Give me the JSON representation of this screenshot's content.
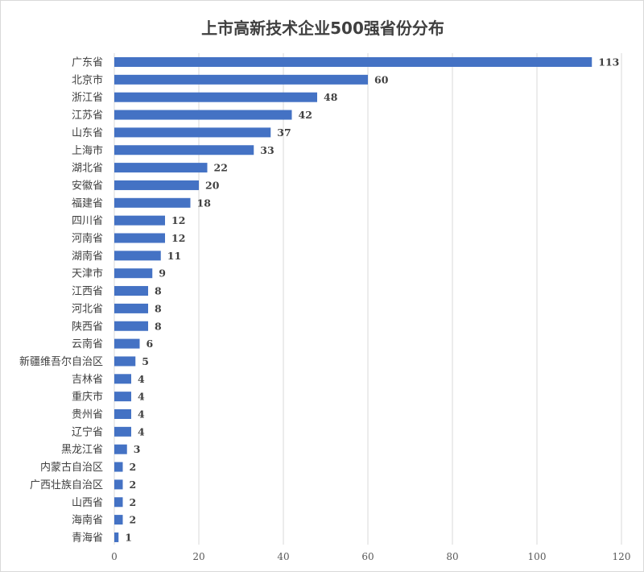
{
  "chart_data": {
    "type": "bar",
    "orientation": "horizontal",
    "title": "上市高新技术企业500强省份分布",
    "categories": [
      "广东省",
      "北京市",
      "浙江省",
      "江苏省",
      "山东省",
      "上海市",
      "湖北省",
      "安徽省",
      "福建省",
      "四川省",
      "河南省",
      "湖南省",
      "天津市",
      "江西省",
      "河北省",
      "陕西省",
      "云南省",
      "新疆维吾尔自治区",
      "吉林省",
      "重庆市",
      "贵州省",
      "辽宁省",
      "黑龙江省",
      "内蒙古自治区",
      "广西壮族自治区",
      "山西省",
      "海南省",
      "青海省"
    ],
    "values": [
      113,
      60,
      48,
      42,
      37,
      33,
      22,
      20,
      18,
      12,
      12,
      11,
      9,
      8,
      8,
      8,
      6,
      5,
      4,
      4,
      4,
      4,
      3,
      2,
      2,
      2,
      2,
      1
    ],
    "xlim": [
      0,
      120
    ],
    "xticks": [
      0,
      20,
      40,
      60,
      80,
      100,
      120
    ],
    "xlabel": "",
    "ylabel": "",
    "grid": "vertical",
    "legend": "none",
    "bar_color": "#4472C4",
    "grid_color": "#d9d9d9"
  }
}
